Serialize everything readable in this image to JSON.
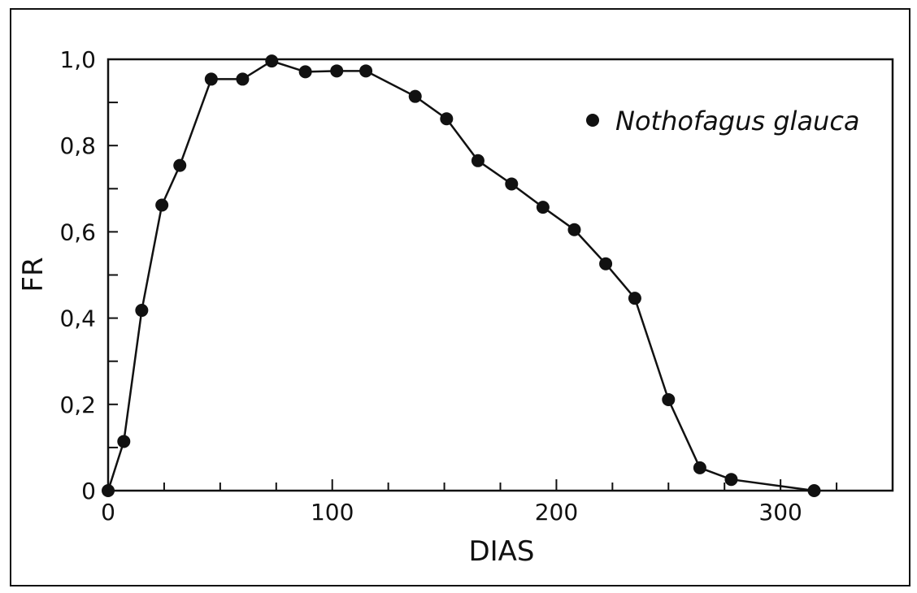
{
  "chart_data": {
    "type": "line",
    "xlabel": "DIAS",
    "ylabel": "FR",
    "xlim": [
      0,
      350
    ],
    "ylim": [
      0,
      1.0
    ],
    "x_ticks": [
      0,
      100,
      200,
      300
    ],
    "x_tick_labels": [
      "0",
      "100",
      "200",
      "300"
    ],
    "y_ticks": [
      0,
      0.2,
      0.4,
      0.6,
      0.8,
      1.0
    ],
    "y_tick_labels": [
      "0",
      "0,2",
      "0,4",
      "0,6",
      "0,8",
      "1,0"
    ],
    "grid": false,
    "legend_position": "top-right",
    "series": [
      {
        "name": "Nothofagus glauca",
        "marker": "filled-circle",
        "color": "#111111",
        "x": [
          0,
          7,
          15,
          24,
          32,
          46,
          60,
          73,
          88,
          102,
          115,
          137,
          151,
          165,
          180,
          194,
          208,
          222,
          235,
          250,
          264,
          278,
          315
        ],
        "y": [
          0.0,
          0.114,
          0.418,
          0.662,
          0.754,
          0.954,
          0.954,
          0.996,
          0.971,
          0.973,
          0.973,
          0.914,
          0.862,
          0.765,
          0.711,
          0.657,
          0.605,
          0.526,
          0.446,
          0.211,
          0.053,
          0.026,
          0.0
        ]
      }
    ]
  }
}
